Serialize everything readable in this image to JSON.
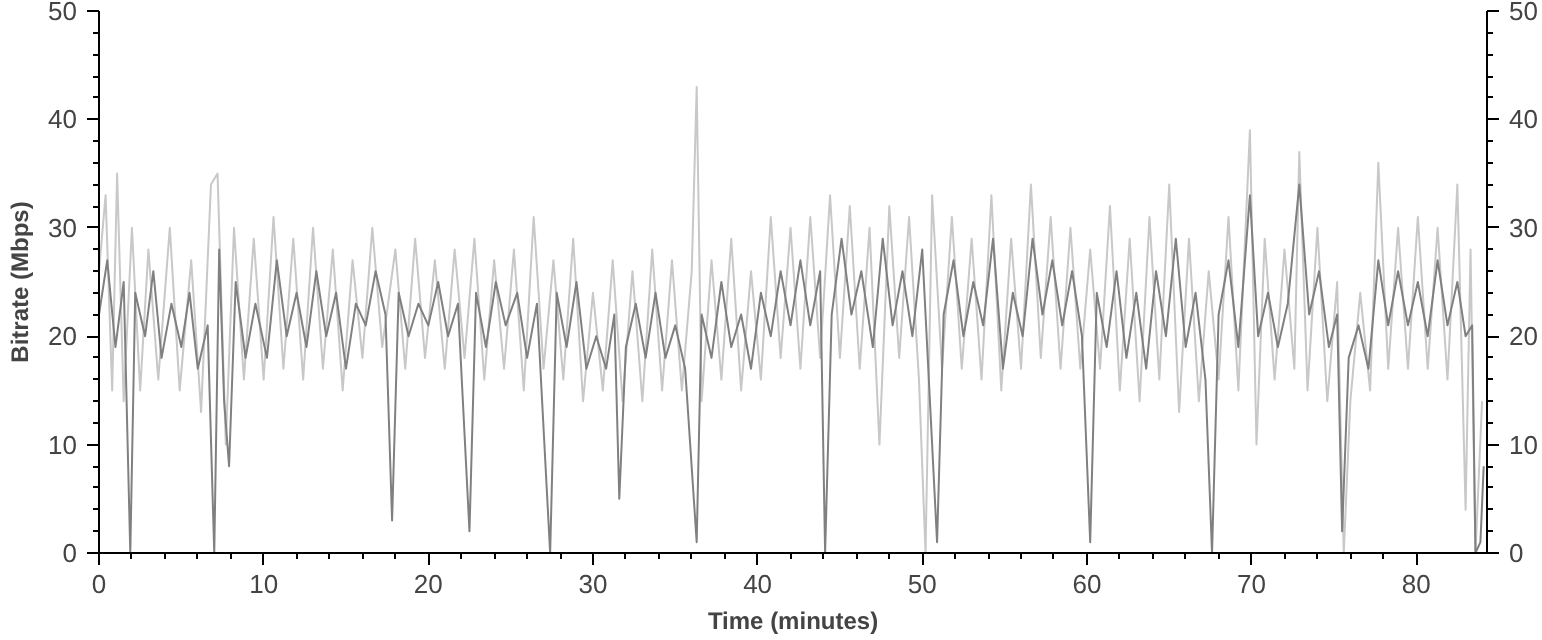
{
  "chart_data": {
    "type": "line",
    "xlabel": "Time (minutes)",
    "ylabel": "Bitrate (Mbps)",
    "xlim": [
      0,
      84.3
    ],
    "ylim": [
      0,
      50
    ],
    "xticks": [
      0,
      10,
      20,
      30,
      40,
      50,
      60,
      70,
      80
    ],
    "yticks": [
      0,
      10,
      20,
      30,
      40,
      50
    ],
    "y2lim": [
      0,
      50
    ],
    "y2ticks": [
      0,
      10,
      20,
      30,
      40,
      50
    ],
    "grid": false,
    "marker": "none",
    "line_style": "solid",
    "series": [
      {
        "color": "#c8c8c8",
        "x": [
          0,
          0.4,
          0.8,
          1.1,
          1.5,
          2.0,
          2.5,
          3.0,
          3.6,
          4.3,
          4.9,
          5.6,
          6.2,
          6.8,
          7.2,
          7.7,
          8.2,
          8.8,
          9.4,
          10.0,
          10.6,
          11.2,
          11.8,
          12.4,
          13.0,
          13.6,
          14.2,
          14.8,
          15.4,
          16.0,
          16.6,
          17.2,
          18.0,
          18.6,
          19.2,
          19.8,
          20.4,
          21.0,
          21.6,
          22.2,
          22.8,
          23.4,
          24.0,
          24.6,
          25.2,
          25.8,
          26.4,
          27.0,
          27.6,
          28.2,
          28.8,
          29.4,
          30.0,
          30.6,
          31.2,
          31.8,
          32.4,
          33.0,
          33.6,
          34.2,
          34.8,
          35.4,
          36.0,
          36.3,
          36.6,
          37.2,
          37.8,
          38.4,
          39.0,
          39.6,
          40.2,
          40.8,
          41.4,
          42.0,
          42.6,
          43.2,
          43.8,
          44.4,
          45.0,
          45.6,
          46.2,
          46.8,
          47.4,
          48.0,
          48.6,
          49.2,
          49.8,
          50.2,
          50.6,
          51.2,
          51.8,
          52.4,
          53.0,
          53.6,
          54.2,
          54.8,
          55.4,
          56.0,
          56.6,
          57.2,
          57.8,
          58.4,
          59.0,
          59.6,
          60.2,
          60.8,
          61.4,
          62.0,
          62.6,
          63.2,
          63.8,
          64.4,
          65.0,
          65.6,
          66.2,
          66.8,
          67.4,
          68.0,
          68.6,
          69.2,
          69.9,
          70.3,
          70.8,
          71.4,
          72.0,
          72.6,
          72.9,
          73.4,
          74.0,
          74.6,
          75.2,
          75.6,
          76.0,
          76.6,
          77.2,
          77.7,
          78.3,
          78.9,
          79.5,
          80.1,
          80.7,
          81.3,
          81.9,
          82.5,
          83.0,
          83.3,
          83.6,
          84.0
        ],
        "values": [
          26,
          33,
          15,
          35,
          14,
          30,
          15,
          28,
          16,
          30,
          15,
          27,
          13,
          34,
          35,
          10,
          30,
          16,
          29,
          16,
          31,
          17,
          29,
          16,
          30,
          17,
          28,
          15,
          27,
          18,
          30,
          19,
          28,
          17,
          29,
          18,
          27,
          17,
          28,
          18,
          29,
          16,
          27,
          17,
          28,
          15,
          31,
          17,
          27,
          16,
          29,
          14,
          24,
          15,
          27,
          14,
          26,
          14,
          28,
          15,
          27,
          15,
          26,
          43,
          14,
          27,
          16,
          29,
          15,
          26,
          16,
          31,
          18,
          30,
          17,
          31,
          18,
          33,
          18,
          32,
          17,
          30,
          10,
          32,
          18,
          31,
          16,
          0,
          33,
          17,
          31,
          17,
          29,
          16,
          33,
          15,
          29,
          17,
          34,
          18,
          31,
          17,
          30,
          17,
          28,
          17,
          32,
          15,
          29,
          14,
          31,
          16,
          34,
          13,
          29,
          14,
          26,
          16,
          31,
          15,
          39,
          10,
          29,
          16,
          28,
          17,
          37,
          15,
          30,
          14,
          25,
          0,
          14,
          24,
          15,
          36,
          17,
          30,
          17,
          31,
          17,
          30,
          16,
          34,
          4,
          28,
          0,
          14
        ]
      },
      {
        "color": "#808080",
        "x": [
          0,
          0.5,
          1.0,
          1.5,
          1.9,
          2.2,
          2.8,
          3.3,
          3.8,
          4.4,
          5.0,
          5.5,
          6.0,
          6.6,
          7.0,
          7.3,
          7.6,
          7.9,
          8.3,
          8.9,
          9.5,
          10.2,
          10.8,
          11.4,
          12.0,
          12.6,
          13.2,
          13.8,
          14.4,
          15.0,
          15.6,
          16.2,
          16.8,
          17.4,
          17.8,
          18.2,
          18.8,
          19.4,
          20.0,
          20.6,
          21.2,
          21.8,
          22.5,
          22.9,
          23.5,
          24.1,
          24.7,
          25.4,
          26.0,
          26.6,
          27.4,
          27.8,
          28.4,
          29.0,
          29.6,
          30.2,
          30.8,
          31.3,
          31.6,
          32.0,
          32.6,
          33.2,
          33.8,
          34.4,
          35.0,
          35.6,
          36.3,
          36.6,
          37.2,
          37.8,
          38.4,
          39.0,
          39.6,
          40.2,
          40.8,
          41.4,
          42.0,
          42.6,
          43.2,
          43.8,
          44.1,
          44.5,
          45.1,
          45.7,
          46.3,
          47.0,
          47.6,
          48.2,
          48.8,
          49.4,
          50.0,
          50.9,
          51.3,
          51.9,
          52.5,
          53.1,
          53.7,
          54.3,
          54.9,
          55.5,
          56.1,
          56.7,
          57.3,
          57.9,
          58.5,
          59.1,
          59.7,
          60.2,
          60.6,
          61.2,
          61.8,
          62.4,
          63.0,
          63.6,
          64.2,
          64.8,
          65.4,
          66.0,
          66.6,
          67.2,
          67.6,
          68.0,
          68.6,
          69.2,
          69.9,
          70.4,
          71.0,
          71.6,
          72.2,
          72.9,
          73.5,
          74.1,
          74.7,
          75.2,
          75.5,
          75.9,
          76.5,
          77.1,
          77.7,
          78.3,
          78.9,
          79.5,
          80.1,
          80.7,
          81.3,
          81.9,
          82.5,
          83.0,
          83.4,
          83.6,
          83.9,
          84.1
        ],
        "values": [
          22,
          27,
          19,
          25,
          0,
          24,
          20,
          26,
          18,
          23,
          19,
          24,
          17,
          21,
          0,
          28,
          14,
          8,
          25,
          18,
          23,
          18,
          27,
          20,
          24,
          19,
          26,
          20,
          24,
          17,
          23,
          21,
          26,
          22,
          3,
          24,
          20,
          23,
          21,
          25,
          20,
          23,
          2,
          24,
          19,
          25,
          21,
          24,
          18,
          23,
          0,
          24,
          19,
          25,
          17,
          20,
          17,
          22,
          5,
          19,
          23,
          18,
          24,
          18,
          21,
          17,
          1,
          22,
          18,
          25,
          19,
          22,
          17,
          24,
          20,
          26,
          21,
          27,
          21,
          26,
          0,
          22,
          29,
          22,
          26,
          19,
          29,
          21,
          26,
          20,
          28,
          1,
          22,
          27,
          20,
          25,
          21,
          29,
          17,
          24,
          20,
          29,
          22,
          27,
          21,
          26,
          20,
          1,
          24,
          19,
          26,
          18,
          24,
          17,
          26,
          20,
          29,
          19,
          24,
          16,
          0,
          22,
          27,
          19,
          33,
          20,
          24,
          19,
          23,
          34,
          22,
          26,
          19,
          22,
          2,
          18,
          21,
          17,
          27,
          21,
          26,
          21,
          25,
          20,
          27,
          21,
          25,
          20,
          21,
          0,
          1,
          8
        ]
      }
    ]
  }
}
